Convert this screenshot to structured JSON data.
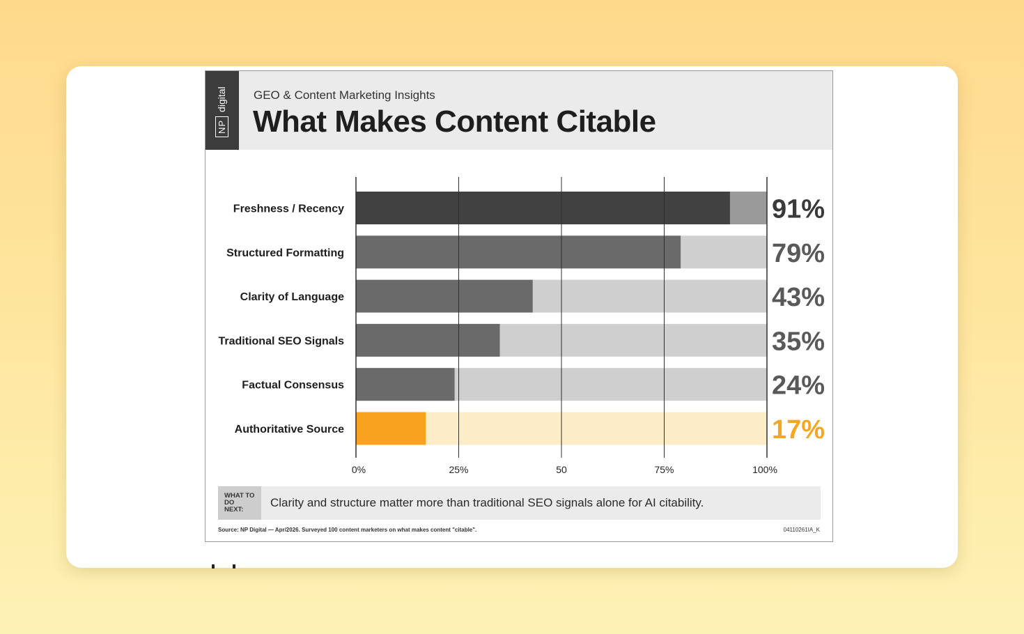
{
  "header": {
    "brand_np": "NP",
    "brand_name": "digital",
    "subtitle": "GEO & Content Marketing Insights",
    "title": "What Makes Content Citable"
  },
  "chart_data": {
    "type": "bar",
    "orientation": "horizontal",
    "categories": [
      "Freshness / Recency",
      "Structured Formatting",
      "Clarity of Language",
      "Traditional SEO Signals",
      "Factual Consensus",
      "Authoritative Source"
    ],
    "values": [
      91,
      79,
      43,
      35,
      24,
      17
    ],
    "value_labels": [
      "91%",
      "79%",
      "43%",
      "35%",
      "24%",
      "17%"
    ],
    "highlight_index": 5,
    "xlim": [
      0,
      100
    ],
    "tick_values": [
      0,
      25,
      50,
      75,
      100
    ],
    "tick_labels": [
      "0%",
      "25%",
      "50",
      "75%",
      "100%"
    ],
    "grid": true,
    "colors": {
      "top_bar": "#414141",
      "bar": "#6a6a6a",
      "track_top": "#9a9a9a",
      "track": "#cfcfcf",
      "highlight_bar": "#f8a21f",
      "highlight_track": "#fdecc8",
      "highlight_text": "#f5a623",
      "pct_top": "#3a3a3a",
      "pct": "#595959"
    }
  },
  "footer": {
    "badge": "WHAT TO DO NEXT:",
    "note": "Clarity and structure matter more than traditional SEO signals alone for AI citability.",
    "source": "Source: NP Digital — Apr/2026. Surveyed 100 content marketers on what makes content \"citable\".",
    "code": "04110261IA_K"
  }
}
